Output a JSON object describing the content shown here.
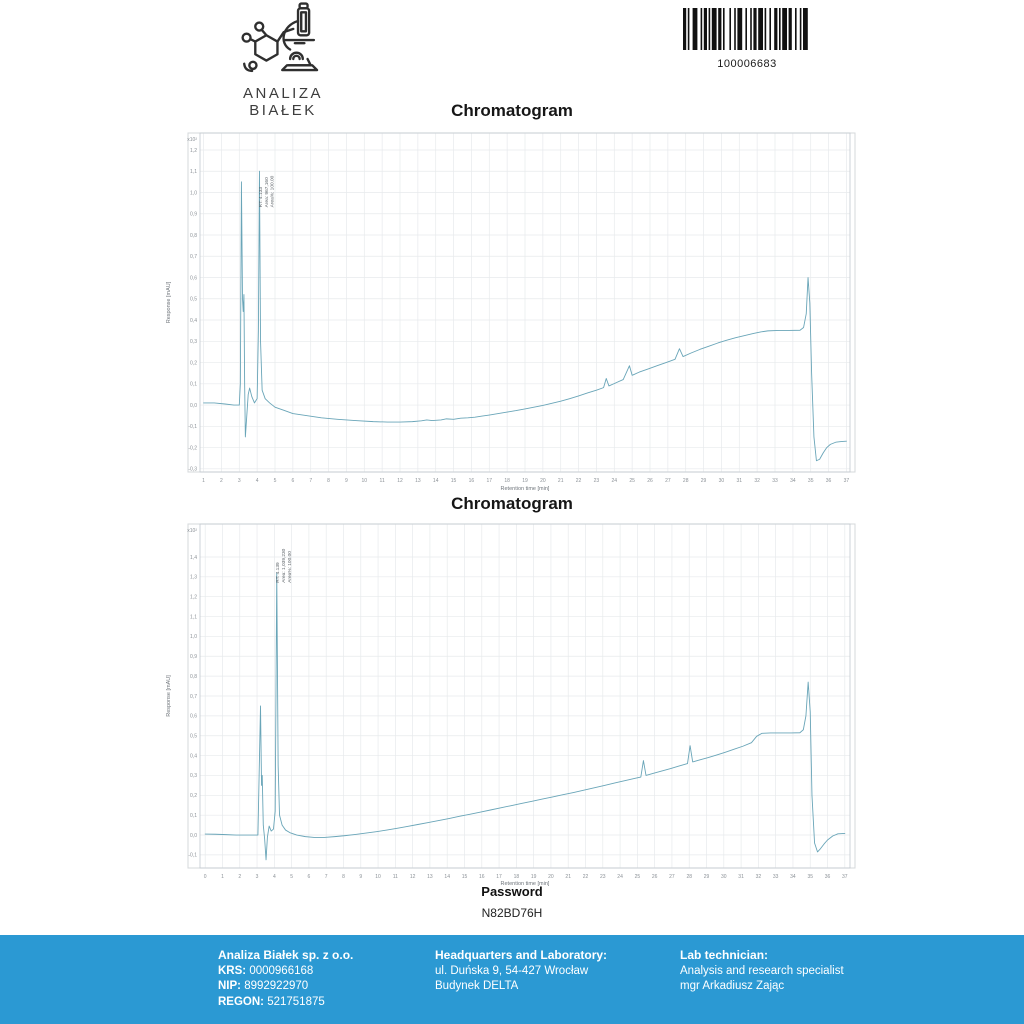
{
  "header": {
    "logo_text": "ANALIZA BIAŁEK",
    "barcode_value": "100006683"
  },
  "chart_data": [
    {
      "type": "line",
      "title": "Chromatogram",
      "xlabel": "Retention time [min]",
      "ylabel": "Response [mAU]",
      "exponent_label": "x10²",
      "xlim": [
        0.8,
        37.2
      ],
      "ylim": [
        -0.315,
        1.28
      ],
      "xticks": [
        1,
        2,
        3,
        4,
        5,
        6,
        7,
        8,
        9,
        10,
        11,
        12,
        13,
        14,
        15,
        16,
        17,
        18,
        19,
        20,
        21,
        22,
        23,
        24,
        25,
        26,
        27,
        28,
        29,
        30,
        31,
        32,
        33,
        34,
        35,
        36,
        37
      ],
      "yticks": [
        -0.3,
        -0.2,
        -0.1,
        0.0,
        0.1,
        0.2,
        0.3,
        0.4,
        0.5,
        0.6,
        0.7,
        0.8,
        0.9,
        1.0,
        1.1,
        1.2
      ],
      "grid": true,
      "legend": "none",
      "line_color": "#69a5b8",
      "peak_annotation": {
        "x": 4.133,
        "y_base": 0.93,
        "lines": [
          "RT: 4.133",
          "Area: 967,160",
          "Area%: 100.00"
        ]
      },
      "series": [
        {
          "name": "UV response",
          "points": [
            [
              1.0,
              0.01
            ],
            [
              1.6,
              0.01
            ],
            [
              2.2,
              0.005
            ],
            [
              2.7,
              0.0
            ],
            [
              3.0,
              0.0
            ],
            [
              3.06,
              0.1
            ],
            [
              3.12,
              1.05
            ],
            [
              3.18,
              0.5
            ],
            [
              3.22,
              0.44
            ],
            [
              3.26,
              0.52
            ],
            [
              3.3,
              0.1
            ],
            [
              3.34,
              -0.15
            ],
            [
              3.42,
              -0.05
            ],
            [
              3.5,
              0.05
            ],
            [
              3.58,
              0.08
            ],
            [
              3.7,
              0.04
            ],
            [
              3.85,
              0.01
            ],
            [
              4.0,
              0.03
            ],
            [
              4.07,
              0.35
            ],
            [
              4.13,
              1.1
            ],
            [
              4.19,
              0.3
            ],
            [
              4.28,
              0.07
            ],
            [
              4.45,
              0.03
            ],
            [
              4.7,
              0.01
            ],
            [
              5.0,
              -0.01
            ],
            [
              5.5,
              -0.025
            ],
            [
              6.0,
              -0.04
            ],
            [
              6.8,
              -0.05
            ],
            [
              7.6,
              -0.06
            ],
            [
              8.5,
              -0.067
            ],
            [
              9.5,
              -0.073
            ],
            [
              10.5,
              -0.078
            ],
            [
              11.3,
              -0.08
            ],
            [
              12.0,
              -0.08
            ],
            [
              12.7,
              -0.078
            ],
            [
              13.2,
              -0.074
            ],
            [
              13.5,
              -0.07
            ],
            [
              13.8,
              -0.073
            ],
            [
              14.3,
              -0.07
            ],
            [
              14.6,
              -0.065
            ],
            [
              15.0,
              -0.067
            ],
            [
              15.4,
              -0.062
            ],
            [
              15.8,
              -0.06
            ],
            [
              16.2,
              -0.057
            ],
            [
              16.6,
              -0.052
            ],
            [
              17.0,
              -0.047
            ],
            [
              17.5,
              -0.04
            ],
            [
              18.0,
              -0.033
            ],
            [
              18.5,
              -0.026
            ],
            [
              19.0,
              -0.018
            ],
            [
              19.5,
              -0.01
            ],
            [
              20.0,
              -0.002
            ],
            [
              20.5,
              0.008
            ],
            [
              21.0,
              0.018
            ],
            [
              21.5,
              0.03
            ],
            [
              22.0,
              0.043
            ],
            [
              22.5,
              0.057
            ],
            [
              23.0,
              0.07
            ],
            [
              23.4,
              0.082
            ],
            [
              23.55,
              0.125
            ],
            [
              23.7,
              0.09
            ],
            [
              24.1,
              0.105
            ],
            [
              24.5,
              0.12
            ],
            [
              24.85,
              0.185
            ],
            [
              25.0,
              0.14
            ],
            [
              25.4,
              0.155
            ],
            [
              25.9,
              0.17
            ],
            [
              26.4,
              0.185
            ],
            [
              26.9,
              0.2
            ],
            [
              27.4,
              0.215
            ],
            [
              27.65,
              0.265
            ],
            [
              27.85,
              0.228
            ],
            [
              28.3,
              0.245
            ],
            [
              28.8,
              0.262
            ],
            [
              29.3,
              0.277
            ],
            [
              29.8,
              0.292
            ],
            [
              30.3,
              0.305
            ],
            [
              30.8,
              0.317
            ],
            [
              31.3,
              0.327
            ],
            [
              31.8,
              0.337
            ],
            [
              32.2,
              0.344
            ],
            [
              32.6,
              0.349
            ],
            [
              33.2,
              0.351
            ],
            [
              33.8,
              0.351
            ],
            [
              34.4,
              0.352
            ],
            [
              34.6,
              0.365
            ],
            [
              34.75,
              0.43
            ],
            [
              34.85,
              0.6
            ],
            [
              34.95,
              0.48
            ],
            [
              35.05,
              0.15
            ],
            [
              35.18,
              -0.15
            ],
            [
              35.32,
              -0.262
            ],
            [
              35.5,
              -0.255
            ],
            [
              35.7,
              -0.225
            ],
            [
              35.9,
              -0.2
            ],
            [
              36.1,
              -0.185
            ],
            [
              36.4,
              -0.175
            ],
            [
              36.7,
              -0.172
            ],
            [
              37.0,
              -0.17
            ]
          ]
        }
      ]
    },
    {
      "type": "line",
      "title": "Chromatogram",
      "xlabel": "Retention time [min]",
      "ylabel": "Response [mAU]",
      "exponent_label": "x10²",
      "xlim": [
        -0.3,
        37.3
      ],
      "ylim": [
        -0.166,
        1.566
      ],
      "xticks": [
        0,
        1,
        2,
        3,
        4,
        5,
        6,
        7,
        8,
        9,
        10,
        11,
        12,
        13,
        14,
        15,
        16,
        17,
        18,
        19,
        20,
        21,
        22,
        23,
        24,
        25,
        26,
        27,
        28,
        29,
        30,
        31,
        32,
        33,
        34,
        35,
        36,
        37
      ],
      "yticks": [
        -0.1,
        0.0,
        0.1,
        0.2,
        0.3,
        0.4,
        0.5,
        0.6,
        0.7,
        0.8,
        0.9,
        1.0,
        1.1,
        1.2,
        1.3,
        1.4
      ],
      "grid": true,
      "legend": "none",
      "line_color": "#69a5b8",
      "peak_annotation": {
        "x": 4.139,
        "y_base": 1.27,
        "lines": [
          "RT: 4.139",
          "Area: 1,039,230",
          "Area%: 100.00"
        ]
      },
      "series": [
        {
          "name": "UV response",
          "points": [
            [
              0.0,
              0.005
            ],
            [
              0.6,
              0.004
            ],
            [
              1.2,
              0.002
            ],
            [
              1.8,
              0.0
            ],
            [
              2.4,
              0.0
            ],
            [
              2.9,
              0.0
            ],
            [
              3.05,
              0.0
            ],
            [
              3.12,
              0.3
            ],
            [
              3.2,
              0.65
            ],
            [
              3.26,
              0.25
            ],
            [
              3.3,
              0.3
            ],
            [
              3.36,
              0.05
            ],
            [
              3.44,
              -0.02
            ],
            [
              3.52,
              -0.125
            ],
            [
              3.6,
              -0.01
            ],
            [
              3.7,
              0.045
            ],
            [
              3.82,
              0.02
            ],
            [
              3.95,
              0.03
            ],
            [
              4.05,
              0.12
            ],
            [
              4.14,
              1.32
            ],
            [
              4.22,
              0.35
            ],
            [
              4.3,
              0.1
            ],
            [
              4.45,
              0.05
            ],
            [
              4.65,
              0.025
            ],
            [
              4.9,
              0.012
            ],
            [
              5.3,
              0.0
            ],
            [
              5.8,
              -0.008
            ],
            [
              6.3,
              -0.012
            ],
            [
              6.9,
              -0.012
            ],
            [
              7.5,
              -0.008
            ],
            [
              8.1,
              -0.003
            ],
            [
              8.7,
              0.003
            ],
            [
              9.3,
              0.01
            ],
            [
              9.9,
              0.017
            ],
            [
              10.5,
              0.025
            ],
            [
              11.1,
              0.034
            ],
            [
              11.7,
              0.043
            ],
            [
              12.3,
              0.053
            ],
            [
              12.9,
              0.063
            ],
            [
              13.5,
              0.073
            ],
            [
              14.1,
              0.083
            ],
            [
              14.7,
              0.094
            ],
            [
              15.3,
              0.104
            ],
            [
              15.9,
              0.115
            ],
            [
              16.5,
              0.126
            ],
            [
              17.1,
              0.137
            ],
            [
              17.7,
              0.148
            ],
            [
              18.3,
              0.159
            ],
            [
              18.9,
              0.17
            ],
            [
              19.5,
              0.181
            ],
            [
              20.1,
              0.192
            ],
            [
              20.7,
              0.203
            ],
            [
              21.3,
              0.214
            ],
            [
              21.9,
              0.226
            ],
            [
              22.5,
              0.238
            ],
            [
              23.1,
              0.25
            ],
            [
              23.7,
              0.262
            ],
            [
              24.3,
              0.274
            ],
            [
              24.9,
              0.286
            ],
            [
              25.2,
              0.292
            ],
            [
              25.35,
              0.375
            ],
            [
              25.5,
              0.3
            ],
            [
              25.9,
              0.31
            ],
            [
              26.4,
              0.322
            ],
            [
              26.9,
              0.334
            ],
            [
              27.4,
              0.347
            ],
            [
              27.9,
              0.36
            ],
            [
              28.05,
              0.45
            ],
            [
              28.2,
              0.368
            ],
            [
              28.6,
              0.378
            ],
            [
              29.1,
              0.39
            ],
            [
              29.6,
              0.403
            ],
            [
              30.1,
              0.417
            ],
            [
              30.6,
              0.432
            ],
            [
              31.1,
              0.447
            ],
            [
              31.6,
              0.465
            ],
            [
              31.9,
              0.497
            ],
            [
              32.2,
              0.512
            ],
            [
              32.7,
              0.514
            ],
            [
              33.3,
              0.514
            ],
            [
              33.9,
              0.514
            ],
            [
              34.4,
              0.515
            ],
            [
              34.6,
              0.53
            ],
            [
              34.75,
              0.6
            ],
            [
              34.88,
              0.77
            ],
            [
              35.0,
              0.62
            ],
            [
              35.1,
              0.2
            ],
            [
              35.25,
              -0.04
            ],
            [
              35.42,
              -0.085
            ],
            [
              35.6,
              -0.068
            ],
            [
              35.8,
              -0.045
            ],
            [
              36.0,
              -0.025
            ],
            [
              36.3,
              -0.005
            ],
            [
              36.6,
              0.006
            ],
            [
              37.0,
              0.008
            ]
          ]
        }
      ]
    }
  ],
  "password": {
    "label": "Password",
    "value": "N82BD76H"
  },
  "footer": {
    "background_color": "#2b99d3",
    "company": {
      "name": "Analiza Białek sp. z o.o.",
      "krs_label": "KRS:",
      "krs": " 0000966168",
      "nip_label": "NIP:",
      "nip": " 8992922970",
      "regon_label": "REGON:",
      "regon": " 521751875"
    },
    "address": {
      "title": "Headquarters and Laboratory:",
      "line1": "ul. Duńska 9, 54-427 Wrocław",
      "line2": "Budynek DELTA"
    },
    "technician": {
      "title": "Lab technician:",
      "line1": "Analysis and research specialist",
      "line2": "mgr Arkadiusz Zając"
    }
  }
}
